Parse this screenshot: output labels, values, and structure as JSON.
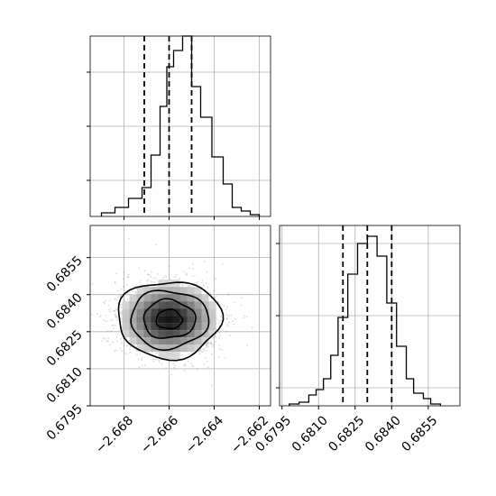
{
  "chart_data": {
    "type": "corner",
    "colors": {
      "line": "#000000",
      "grid": "#b0b0b0",
      "scatter": "#555555"
    },
    "grid": true,
    "panels": [
      {
        "name": "hist-param-1",
        "type": "histogram",
        "xlim": [
          -2.6695,
          -2.6615
        ],
        "ylim": [
          0,
          1.0
        ],
        "bin_edges": [
          -2.669,
          -2.6684,
          -2.6678,
          -2.6672,
          -2.6668,
          -2.6664,
          -2.6661,
          -2.6658,
          -2.6654,
          -2.665,
          -2.6646,
          -2.6641,
          -2.6636,
          -2.6632,
          -2.6628,
          -2.6624,
          -2.662
        ],
        "counts": [
          0.02,
          0.05,
          0.1,
          0.16,
          0.34,
          0.61,
          0.83,
          0.92,
          1.0,
          0.72,
          0.55,
          0.33,
          0.18,
          0.05,
          0.03,
          0.01
        ],
        "quantiles": [
          -2.6671,
          -2.666,
          -2.665
        ],
        "x_ticks": [
          -2.668,
          -2.666,
          -2.664,
          -2.662
        ],
        "y_ticks": [
          0.2,
          0.5,
          0.8
        ]
      },
      {
        "name": "hist-param-2",
        "type": "histogram",
        "xlim": [
          0.6794,
          0.6868
        ],
        "ylim": [
          0,
          1.0
        ],
        "bin_edges": [
          0.6798,
          0.6802,
          0.6806,
          0.6809,
          0.6812,
          0.6815,
          0.6818,
          0.6822,
          0.6826,
          0.683,
          0.6834,
          0.6838,
          0.6842,
          0.6846,
          0.6849,
          0.6853,
          0.6856,
          0.686
        ],
        "counts": [
          0.01,
          0.02,
          0.06,
          0.09,
          0.15,
          0.28,
          0.49,
          0.73,
          0.9,
          0.94,
          0.83,
          0.57,
          0.33,
          0.15,
          0.07,
          0.04,
          0.01
        ],
        "quantiles": [
          0.682,
          0.683,
          0.684
        ],
        "x_ticks": [
          "0.6795",
          "0.6810",
          "0.6825",
          "0.6840",
          "0.6855"
        ],
        "y_ticks": [
          0.1,
          0.5,
          0.9
        ]
      },
      {
        "name": "scatter-2d",
        "type": "2d-density",
        "xlim": [
          -2.6695,
          -2.6615
        ],
        "ylim": [
          0.6795,
          0.6868
        ],
        "center": [
          -2.666,
          0.683
        ],
        "spread": [
          0.00115,
          0.00078
        ],
        "levels": [
          0.5,
          1.0,
          1.5,
          2.0
        ],
        "x_ticks": [
          "−2.668",
          "−2.666",
          "−2.664",
          "−2.662"
        ],
        "y_ticks": [
          "0.6795",
          "0.6810",
          "0.6825",
          "0.6840",
          "0.6855"
        ]
      }
    ]
  }
}
